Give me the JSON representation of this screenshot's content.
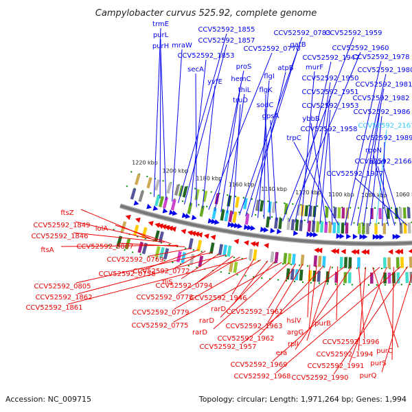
{
  "title": "Campylobacter curvus 525.92, complete genome",
  "footer": {
    "accession": "Accession: NC_009715",
    "summary": "Topology: circular; Length: 1,971,264 bp; Genes: 1,994"
  },
  "colors": {
    "forward": "#0000ee",
    "reverse": "#ee0000",
    "highlight": "#33ccff",
    "backbone": "#777777",
    "tick": "#008800"
  },
  "scale_labels": [
    "1220 kbp",
    "1200 kbp",
    "1180 kbp",
    "1160 kbp",
    "1140 kbp",
    "1120 kbp",
    "1100 kbp",
    "1080 kbp",
    "1060 kbp"
  ],
  "forward_genes": [
    "trmE",
    "purL",
    "purH",
    "mraW",
    "CCV52592_1855",
    "CCV52592_1857",
    "CCV52592_1853",
    "secA",
    "yvfE",
    "CCV52592_0770",
    "proS",
    "hemC",
    "thiL",
    "truD",
    "CCV52592_0783",
    "gatB",
    "atpB",
    "flgI",
    "flgK",
    "sodC",
    "gpsA",
    "CCV52592_1959",
    "CCV52592_1960",
    "CCV52592_1947",
    "murF",
    "CCV52592_1950",
    "CCV52592_1951",
    "CCV52592_1953",
    "ybbB",
    "CCV52592_1958",
    "trpC",
    "CCV52592_1978",
    "CCV52592_1980",
    "CCV52592_1981",
    "CCV52592_1982",
    "CCV52592_1986",
    "CCV52592_2167",
    "CCV52592_1989",
    "rpoN",
    "murI",
    "CCV52592_2166",
    "CCV52592_1977"
  ],
  "reverse_genes": [
    "ftsZ",
    "CCV52592_1849",
    "CCV52592_1846",
    "lolA",
    "ftsA",
    "CCV52592_0807",
    "CCV52592_0769",
    "CCV52592_0758",
    "CCV52592_0772",
    "CCV52592_0805",
    "fliS",
    "CCV52592_1862",
    "CCV52592_0794",
    "CCV52592_0778",
    "CCV52592_1861",
    "CCV52592_1946",
    "CCV52592_0779",
    "rarD",
    "rarD",
    "CCV52592_0775",
    "rarD",
    "CCV52592_1961",
    "CCV52592_1963",
    "hslV",
    "argG",
    "CCV52592_1962",
    "rplI",
    "purB",
    "CCV52592_1957",
    "era",
    "CCV52592_1996",
    "CCV52592_1994",
    "purC",
    "CCV52592_1969",
    "CCV52592_1991",
    "purS",
    "CCV52592_1968",
    "CCV52592_1990",
    "purQ"
  ]
}
